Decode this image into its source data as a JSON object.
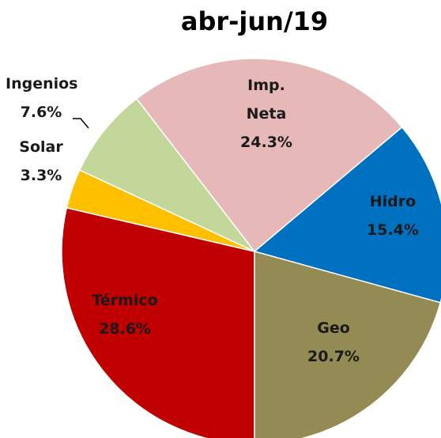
{
  "chart_data": {
    "type": "pie",
    "title": "abr-jun/19",
    "categories": [
      "Térmico",
      "Solar",
      "Ingenios",
      "Imp. Neta",
      "Hidro",
      "Geo"
    ],
    "values": [
      28.6,
      3.3,
      7.6,
      24.3,
      15.4,
      20.7
    ],
    "value_labels": [
      "28.6%",
      "3.3%",
      "7.6%",
      "24.3%",
      "15.4%",
      "20.7%"
    ],
    "colors": [
      "#c00000",
      "#ffc000",
      "#c4d79b",
      "#e6b8b7",
      "#0070c0",
      "#948a54"
    ]
  }
}
